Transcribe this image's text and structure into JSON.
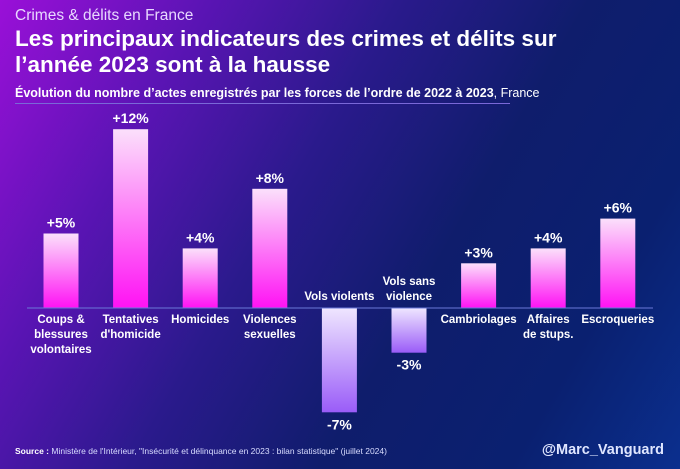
{
  "header": {
    "kicker": "Crimes & délits en France",
    "title_line1": "Les principaux indicateurs des crimes et délits sur",
    "title_line2": "l’année 2023 sont à la hausse",
    "subtitle_bold": "Évolution du nombre d’actes enregistrés par les forces de l’ordre de 2022 à 2023",
    "subtitle_light": ", France"
  },
  "footer": {
    "source_label": "Source :",
    "source_text": " Ministère de l'Intérieur, \"Insécurité et délinquance en 2023 : bilan statistique\" (juillet 2024)",
    "handle": "@Marc_Vanguard"
  },
  "colors": {
    "positive_top": "#fbe0fb",
    "positive_bottom": "#ff12f4",
    "negative_top": "#efe6ff",
    "negative_bottom": "#9a5cf8",
    "axis": "#6a78d8"
  },
  "chart_data": {
    "type": "bar",
    "title": "Évolution du nombre d’actes enregistrés par les forces de l’ordre de 2022 à 2023, France",
    "xlabel": "",
    "ylabel": "",
    "unit": "%",
    "categories": [
      [
        "Coups &",
        "blessures",
        "volontaires"
      ],
      [
        "Tentatives",
        "d'homicide"
      ],
      [
        "Homicides"
      ],
      [
        "Violences",
        "sexuelles"
      ],
      [
        "Vols violents"
      ],
      [
        "Vols sans",
        "violence"
      ],
      [
        "Cambriolages"
      ],
      [
        "Affaires",
        "de stups."
      ],
      [
        "Escroqueries"
      ]
    ],
    "values": [
      5,
      12,
      4,
      8,
      -7,
      -3,
      3,
      4,
      6
    ],
    "labels": [
      "+5%",
      "+12%",
      "+4%",
      "+8%",
      "-7%",
      "-3%",
      "+3%",
      "+4%",
      "+6%"
    ],
    "ylim": [
      -7,
      12
    ],
    "grid": false,
    "legend": "none"
  }
}
